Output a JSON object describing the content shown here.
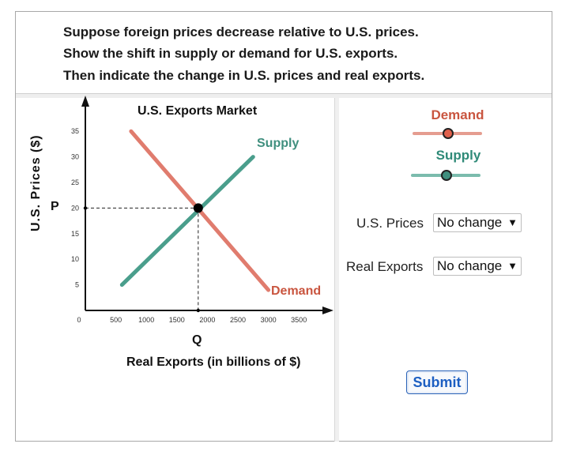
{
  "prompt": {
    "line1": "Suppose foreign prices decrease relative to U.S. prices.",
    "line2": "Show the shift in supply or demand for U.S. exports.",
    "line3": "Then indicate the change in U.S. prices and real exports."
  },
  "graph": {
    "title": "U.S. Exports Market",
    "ylabel": "U.S. Prices ($)",
    "xlabel": "Real Exports (in billions of $)",
    "p_label": "P",
    "q_label": "Q",
    "supply_label": "Supply",
    "demand_label": "Demand"
  },
  "chart_data": {
    "type": "line",
    "title": "U.S. Exports Market",
    "xlabel": "Real Exports (in billions of $)",
    "ylabel": "U.S. Prices ($)",
    "xlim": [
      0,
      3700
    ],
    "ylim": [
      0,
      36
    ],
    "x_ticks": [
      0,
      500,
      1000,
      1500,
      2000,
      2500,
      3000,
      3500
    ],
    "y_ticks": [
      5,
      10,
      15,
      20,
      25,
      30,
      35
    ],
    "series": [
      {
        "name": "Supply",
        "color": "#4a9e8c",
        "points": [
          [
            600,
            5
          ],
          [
            2750,
            30
          ]
        ]
      },
      {
        "name": "Demand",
        "color": "#e07c6e",
        "points": [
          [
            750,
            35
          ],
          [
            3000,
            4
          ]
        ]
      }
    ],
    "equilibrium": {
      "x": 1850,
      "y": 20
    }
  },
  "legend": {
    "demand_title": "Demand",
    "supply_title": "Supply",
    "demand_color": "#d2503c",
    "supply_color": "#2f8a78"
  },
  "controls": {
    "prices_label": "U.S. Prices",
    "prices_value": "No change",
    "exports_label": "Real Exports",
    "exports_value": "No change",
    "submit_label": "Submit"
  }
}
